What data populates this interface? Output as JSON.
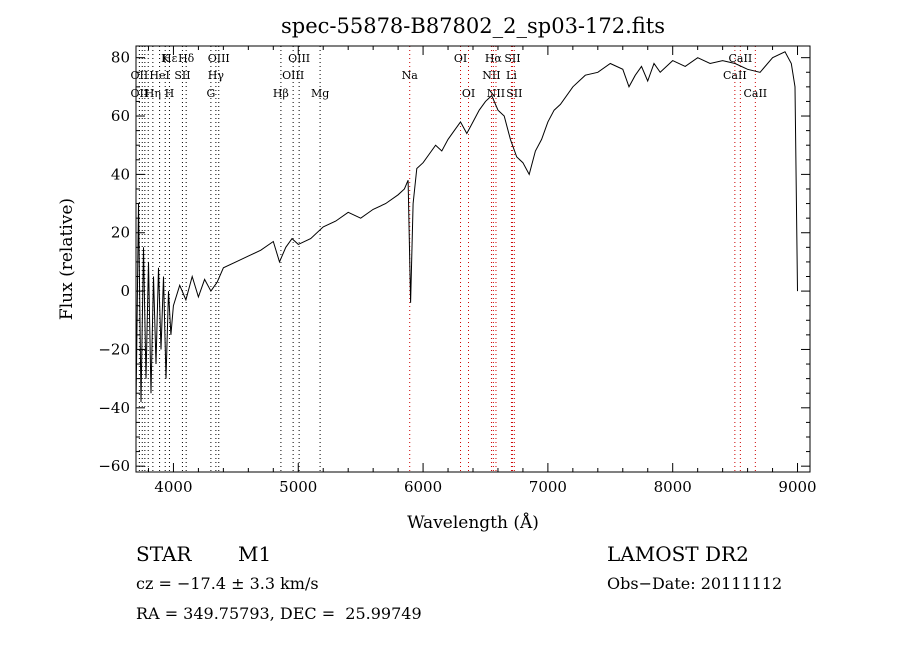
{
  "chart_data": {
    "type": "line",
    "title": "spec-55878-B87802_2_sp03-172.fits",
    "xlabel": "Wavelength (Å)",
    "ylabel": "Flux (relative)",
    "xlim": [
      3700,
      9100
    ],
    "ylim": [
      -62,
      84
    ],
    "xticks": [
      4000,
      5000,
      6000,
      7000,
      8000,
      9000
    ],
    "yticks": [
      -60,
      -40,
      -20,
      0,
      20,
      40,
      60,
      80
    ],
    "grid": false,
    "series": [
      {
        "x": [
          3700,
          3720,
          3740,
          3760,
          3780,
          3800,
          3820,
          3840,
          3860,
          3880,
          3900,
          3920,
          3940,
          3960,
          3980,
          4000,
          4050,
          4100,
          4150,
          4200,
          4250,
          4300,
          4350,
          4400,
          4500,
          4600,
          4700,
          4800,
          4850,
          4900,
          4950,
          5000,
          5100,
          5200,
          5300,
          5400,
          5500,
          5600,
          5700,
          5800,
          5850,
          5880,
          5900,
          5920,
          5950,
          6000,
          6050,
          6100,
          6150,
          6200,
          6250,
          6300,
          6350,
          6400,
          6450,
          6500,
          6550,
          6600,
          6650,
          6700,
          6750,
          6800,
          6850,
          6900,
          6950,
          7000,
          7050,
          7100,
          7200,
          7300,
          7400,
          7500,
          7600,
          7650,
          7700,
          7750,
          7800,
          7850,
          7900,
          8000,
          8100,
          8200,
          8300,
          8400,
          8500,
          8600,
          8700,
          8800,
          8900,
          8950,
          8980,
          9000
        ],
        "y": [
          -40,
          30,
          -38,
          15,
          -30,
          10,
          -35,
          5,
          -25,
          8,
          -20,
          5,
          -30,
          0,
          -15,
          -5,
          2,
          -3,
          5,
          -2,
          4,
          0,
          3,
          8,
          10,
          12,
          14,
          17,
          10,
          15,
          18,
          16,
          18,
          22,
          24,
          27,
          25,
          28,
          30,
          33,
          35,
          38,
          -4,
          30,
          42,
          44,
          47,
          50,
          48,
          52,
          55,
          58,
          54,
          58,
          62,
          65,
          67,
          62,
          60,
          52,
          46,
          44,
          40,
          48,
          52,
          58,
          62,
          64,
          70,
          74,
          75,
          78,
          76,
          70,
          74,
          77,
          72,
          78,
          75,
          79,
          77,
          80,
          78,
          79,
          78,
          76,
          75,
          80,
          82,
          78,
          70,
          0
        ]
      }
    ],
    "line_labels": [
      {
        "label": "Hε",
        "x": 3970,
        "row": 1,
        "color": "#000000"
      },
      {
        "label": "K",
        "x": 3934,
        "row": 1,
        "color": "#000000"
      },
      {
        "label": "Hδ",
        "x": 4102,
        "row": 1,
        "color": "#000000"
      },
      {
        "label": "OIII",
        "x": 4363,
        "row": 1,
        "color": "#000000"
      },
      {
        "label": "OIII",
        "x": 5007,
        "row": 1,
        "color": "#000000"
      },
      {
        "label": "OI",
        "x": 6300,
        "row": 1,
        "color": "#000000"
      },
      {
        "label": "Hα",
        "x": 6563,
        "row": 1,
        "color": "#000000"
      },
      {
        "label": "SII",
        "x": 6716,
        "row": 1,
        "color": "#000000"
      },
      {
        "label": "CaII",
        "x": 8542,
        "row": 1,
        "color": "#000000"
      },
      {
        "label": "OII",
        "x": 3727,
        "row": 2,
        "color": "#000000"
      },
      {
        "label": "HeI",
        "x": 3889,
        "row": 2,
        "color": "#000000"
      },
      {
        "label": "SII",
        "x": 4072,
        "row": 2,
        "color": "#000000"
      },
      {
        "label": "Hγ",
        "x": 4340,
        "row": 2,
        "color": "#000000"
      },
      {
        "label": "OIII",
        "x": 4959,
        "row": 2,
        "color": "#000000"
      },
      {
        "label": "Na",
        "x": 5893,
        "row": 2,
        "color": "#000000"
      },
      {
        "label": "NII",
        "x": 6548,
        "row": 2,
        "color": "#000000"
      },
      {
        "label": "Li",
        "x": 6708,
        "row": 2,
        "color": "#000000"
      },
      {
        "label": "CaII",
        "x": 8498,
        "row": 2,
        "color": "#000000"
      },
      {
        "label": "OII",
        "x": 3727,
        "row": 3,
        "color": "#000000"
      },
      {
        "label": "Hη",
        "x": 3835,
        "row": 3,
        "color": "#000000"
      },
      {
        "label": "H",
        "x": 3968,
        "row": 3,
        "color": "#000000"
      },
      {
        "label": "G",
        "x": 4300,
        "row": 3,
        "color": "#000000"
      },
      {
        "label": "Hβ",
        "x": 4861,
        "row": 3,
        "color": "#000000"
      },
      {
        "label": "Mg",
        "x": 5175,
        "row": 3,
        "color": "#000000"
      },
      {
        "label": "OI",
        "x": 6364,
        "row": 3,
        "color": "#000000"
      },
      {
        "label": "NII",
        "x": 6584,
        "row": 3,
        "color": "#000000"
      },
      {
        "label": "SII",
        "x": 6731,
        "row": 3,
        "color": "#000000"
      },
      {
        "label": "CaII",
        "x": 8662,
        "row": 3,
        "color": "#000000"
      }
    ],
    "marker_lines": [
      {
        "x": 3727,
        "color": "#000000"
      },
      {
        "x": 3750,
        "color": "#000000"
      },
      {
        "x": 3771,
        "color": "#000000"
      },
      {
        "x": 3798,
        "color": "#000000"
      },
      {
        "x": 3835,
        "color": "#000000"
      },
      {
        "x": 3889,
        "color": "#000000"
      },
      {
        "x": 3934,
        "color": "#000000"
      },
      {
        "x": 3968,
        "color": "#000000"
      },
      {
        "x": 4072,
        "color": "#000000"
      },
      {
        "x": 4102,
        "color": "#000000"
      },
      {
        "x": 4300,
        "color": "#000000"
      },
      {
        "x": 4340,
        "color": "#000000"
      },
      {
        "x": 4363,
        "color": "#000000"
      },
      {
        "x": 4861,
        "color": "#000000"
      },
      {
        "x": 4959,
        "color": "#000000"
      },
      {
        "x": 5007,
        "color": "#000000"
      },
      {
        "x": 5175,
        "color": "#000000"
      },
      {
        "x": 5893,
        "color": "#cc0000"
      },
      {
        "x": 6300,
        "color": "#cc0000"
      },
      {
        "x": 6364,
        "color": "#cc0000"
      },
      {
        "x": 6548,
        "color": "#cc0000"
      },
      {
        "x": 6563,
        "color": "#cc0000"
      },
      {
        "x": 6584,
        "color": "#cc0000"
      },
      {
        "x": 6708,
        "color": "#cc0000"
      },
      {
        "x": 6716,
        "color": "#cc0000"
      },
      {
        "x": 6731,
        "color": "#cc0000"
      },
      {
        "x": 8498,
        "color": "#cc0000"
      },
      {
        "x": 8542,
        "color": "#cc0000"
      },
      {
        "x": 8662,
        "color": "#cc0000"
      }
    ]
  },
  "info": {
    "class_label": "STAR",
    "subclass": "M1",
    "survey": "LAMOST DR2",
    "cz": "cz = −17.4 ± 3.3 km/s",
    "obs_date": "Obs−Date: 20111112",
    "coords": "RA = 349.75793, DEC =  25.99749"
  }
}
